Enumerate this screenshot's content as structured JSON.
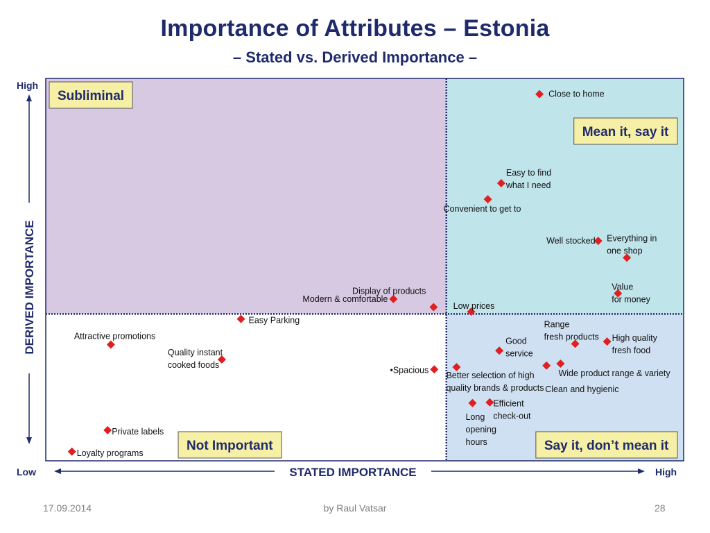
{
  "title": "Importance of Attributes – Estonia",
  "subtitle": "– Stated vs. Derived Importance –",
  "footer": {
    "date": "17.09.2014",
    "author": "by Raul Vatsar",
    "page": "28"
  },
  "colors": {
    "subliminal": "#d8c9e3",
    "mean_it": "#bfe4ea",
    "say_it": "#cfe0f2",
    "not_important": "#ffffff",
    "marker": "#e02020",
    "label_box": "#f6f0a6",
    "axis": "#1f2a6b"
  },
  "chart_data": {
    "type": "scatter",
    "xlabel": "STATED IMPORTANCE",
    "ylabel": "DERIVED IMPORTANCE",
    "x_axis_ends": {
      "low": "Low",
      "high": "High"
    },
    "y_axis_ends": {
      "low": "",
      "high": "High"
    },
    "xlim": [
      0,
      100
    ],
    "ylim": [
      0,
      100
    ],
    "divider_x": 62.8,
    "divider_y": 38.4,
    "quadrants": [
      {
        "name": "Subliminal",
        "corner": "top-left"
      },
      {
        "name": "Mean it, say it",
        "corner": "top-right"
      },
      {
        "name": "Not Important",
        "corner": "bottom-left"
      },
      {
        "name": "Say it, don’t mean it",
        "corner": "bottom-right"
      }
    ],
    "points": [
      {
        "label": "Close to home",
        "x": 77.4,
        "y": 95.9
      },
      {
        "label": "Easy to find\nwhat I need",
        "x": 71.4,
        "y": 72.6
      },
      {
        "label": "Convenient to get to",
        "x": 69.3,
        "y": 68.4
      },
      {
        "label": "Well stocked",
        "x": 86.6,
        "y": 57.5
      },
      {
        "label": "Everything in\none shop",
        "x": 91.1,
        "y": 53.1
      },
      {
        "label": "Value\nfor money",
        "x": 89.7,
        "y": 43.8
      },
      {
        "label": "Display of  products",
        "x": 60.8,
        "y": 40.2
      },
      {
        "label": "Modern & comfortable",
        "x": 54.5,
        "y": 42.3
      },
      {
        "label": "Low prices",
        "x": 66.7,
        "y": 39.0
      },
      {
        "label": "Easy Parking",
        "x": 30.6,
        "y": 37.1
      },
      {
        "label": "Range\nfresh products",
        "x": 83.0,
        "y": 30.6
      },
      {
        "label": "High quality\nfresh food",
        "x": 88.0,
        "y": 31.2
      },
      {
        "label": "Good\nservice",
        "x": 71.1,
        "y": 28.8
      },
      {
        "label": "Wide product range & variety",
        "x": 80.7,
        "y": 25.4
      },
      {
        "label": "Clean and hygienic",
        "x": 78.5,
        "y": 24.9
      },
      {
        "label": "Better selection of high\nquality brands & products",
        "x": 64.4,
        "y": 24.5
      },
      {
        "label": "Attractive  promotions",
        "x": 10.2,
        "y": 30.4
      },
      {
        "label": "Quality instant\ncooked foods",
        "x": 27.6,
        "y": 26.5
      },
      {
        "label": "•Spacious",
        "x": 60.9,
        "y": 23.9
      },
      {
        "label": "Long\nopening\nhours",
        "x": 66.9,
        "y": 15.1
      },
      {
        "label": "Efficient\ncheck-out",
        "x": 69.6,
        "y": 15.3
      },
      {
        "label": "Private labels",
        "x": 9.7,
        "y": 8.0
      },
      {
        "label": "Loyalty programs",
        "x": 4.1,
        "y": 2.4
      }
    ]
  }
}
